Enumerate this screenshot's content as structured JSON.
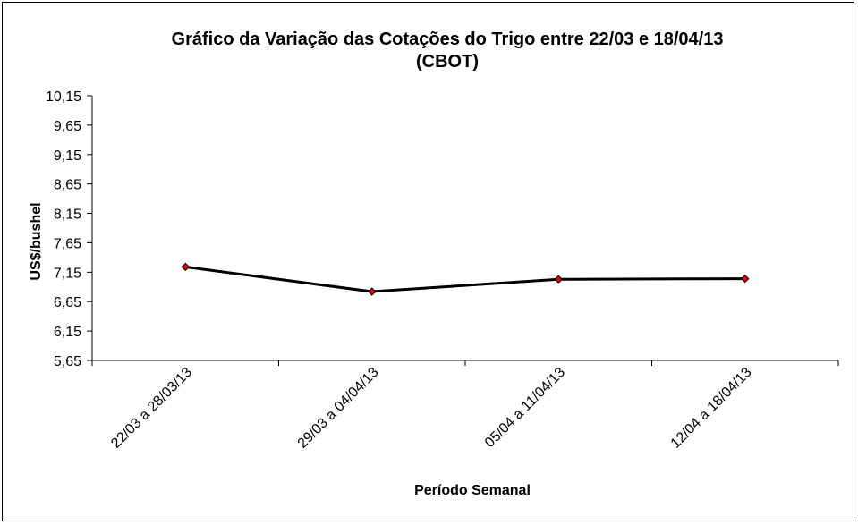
{
  "chart_data": {
    "type": "line",
    "title": "Gráfico da Variação das Cotações do Trigo entre 22/03 e 18/04/13",
    "subtitle": "(CBOT)",
    "xlabel": "Período Semanal",
    "ylabel": "US$/bushel",
    "categories": [
      "22/03 a 28/03/13",
      "29/03 a 04/04/13",
      "05/04 a 11/04/13",
      "12/04 a 18/04/13"
    ],
    "y_ticks": [
      "10,15",
      "9,65",
      "9,15",
      "8,65",
      "8,15",
      "7,65",
      "7,15",
      "6,65",
      "6,15",
      "5,65"
    ],
    "ylim": [
      5.65,
      10.15
    ],
    "series": [
      {
        "values": [
          7.24,
          6.82,
          7.03,
          7.04
        ],
        "line_color": "#000000",
        "marker_color": "#e00000"
      }
    ],
    "grid": false,
    "legend": "none"
  }
}
